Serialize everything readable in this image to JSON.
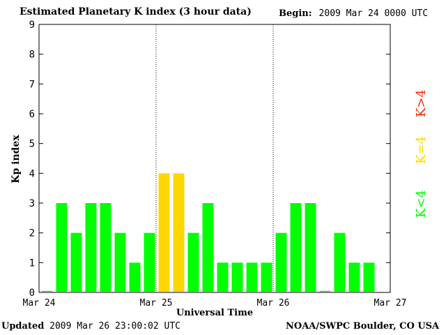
{
  "header": {
    "title": "Estimated Planetary K index (3 hour data)",
    "begin_label": "Begin:",
    "begin_value": "2009 Mar 24 0000 UTC"
  },
  "footer": {
    "updated_label": "Updated",
    "updated_value": "2009 Mar 26 23:00:02 UTC",
    "credit": "NOAA/SWPC Boulder, CO USA"
  },
  "legend": {
    "k_gt4": "K>4",
    "k_eq4": "K=4",
    "k_lt4": "K<4"
  },
  "colors": {
    "k_lt4": "#00ff00",
    "k_eq4": "#ffd700",
    "k_gt4": "#ff2a00"
  },
  "chart_data": {
    "type": "bar",
    "xlabel": "Universal Time",
    "ylabel": "Kp index",
    "ylim": [
      0,
      9
    ],
    "yticks": [
      "0",
      "1",
      "2",
      "3",
      "4",
      "5",
      "6",
      "7",
      "8",
      "9"
    ],
    "xticks": [
      "Mar 24",
      "Mar 25",
      "Mar 26",
      "Mar 27"
    ],
    "day_dividers": [
      "Mar 25",
      "Mar 26"
    ],
    "bar_interval_hours": 3,
    "values": [
      0.05,
      3,
      2,
      3,
      3,
      2,
      1,
      2,
      4,
      4,
      2,
      3,
      1,
      1,
      1,
      1,
      2,
      3,
      3,
      0.05,
      2,
      1,
      1
    ]
  }
}
